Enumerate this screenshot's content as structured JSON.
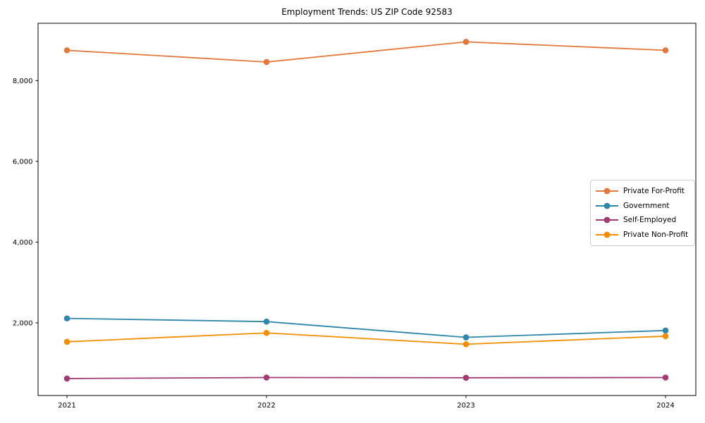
{
  "title": "Employment Trends: US ZIP Code 92583",
  "chart_data": {
    "type": "line",
    "title": "Employment Trends: US ZIP Code 92583",
    "xlabel": "",
    "ylabel": "",
    "x": [
      "2021",
      "2022",
      "2023",
      "2024"
    ],
    "xtick_labels": [
      "2021",
      "2022",
      "2023",
      "2024"
    ],
    "yticks": [
      2000,
      4000,
      6000,
      8000
    ],
    "ytick_labels": [
      "2,000",
      "4,000",
      "6,000",
      "8,000"
    ],
    "ylim": [
      200,
      9420
    ],
    "grid": false,
    "marker": "o",
    "legend_position": "center-right",
    "axis_color": "#000000",
    "series": [
      {
        "name": "Private For-Profit",
        "color": "#E2783C",
        "values": [
          8750,
          8460,
          8960,
          8750
        ]
      },
      {
        "name": "Government",
        "color": "#2E86AB",
        "values": [
          2110,
          2030,
          1640,
          1810
        ]
      },
      {
        "name": "Self-Employed",
        "color": "#A23B72",
        "values": [
          620,
          645,
          640,
          645
        ]
      },
      {
        "name": "Private Non-Profit",
        "color": "#F18F01",
        "values": [
          1530,
          1750,
          1470,
          1670
        ]
      }
    ]
  }
}
